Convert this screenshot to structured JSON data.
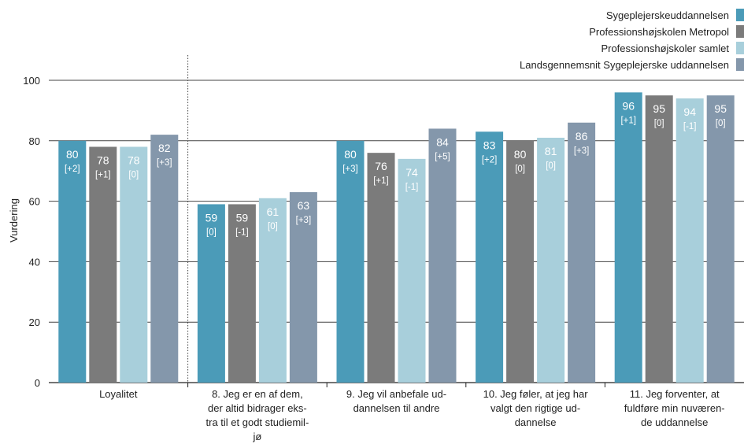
{
  "chart_data": {
    "type": "bar",
    "ylabel": "Vurdering",
    "ylim": [
      0,
      100
    ],
    "yticks": [
      0,
      20,
      40,
      60,
      80,
      100
    ],
    "categories": [
      [
        "Loyalitet"
      ],
      [
        "8. Jeg er en af dem,",
        "der altid bidrager eks-",
        "tra til et godt studiemil-",
        "jø"
      ],
      [
        "9. Jeg vil anbefale ud-",
        "dannelsen til andre"
      ],
      [
        "10. Jeg føler, at jeg har",
        "valgt den rigtige ud-",
        "dannelse"
      ],
      [
        "11. Jeg forventer, at",
        "fuldføre min nuværen-",
        "de uddannelse"
      ]
    ],
    "series": [
      {
        "name": "Sygeplejerskeuddannelsen",
        "color": "#4b9bb8",
        "values": [
          80,
          59,
          80,
          83,
          96
        ],
        "labels": [
          "80",
          "59",
          "80",
          "83",
          "96"
        ],
        "deltas": [
          "[+2]",
          "[0]",
          "[+3]",
          "[+2]",
          "[+1]"
        ]
      },
      {
        "name": "Professionshøjskolen Metropol",
        "color": "#7b7b7b",
        "values": [
          78,
          59,
          76,
          80,
          95
        ],
        "labels": [
          "78",
          "59",
          "76",
          "80",
          "95"
        ],
        "deltas": [
          "[+1]",
          "[-1]",
          "[+1]",
          "[0]",
          "[0]"
        ]
      },
      {
        "name": "Professionshøjskoler samlet",
        "color": "#a8cfdb",
        "values": [
          78,
          61,
          74,
          81,
          94
        ],
        "labels": [
          "78",
          "61",
          "74",
          "81",
          "94"
        ],
        "deltas": [
          "[0]",
          "[0]",
          "[-1]",
          "[0]",
          "[-1]"
        ]
      },
      {
        "name": "Landsgennemsnit Sygeplejerske uddannelsen",
        "color": "#8497ab",
        "values": [
          82,
          63,
          84,
          86,
          95
        ],
        "labels": [
          "82",
          "63",
          "84",
          "86",
          "95"
        ],
        "deltas": [
          "[+3]",
          "[+3]",
          "[+5]",
          "[+3]",
          "[0]"
        ]
      }
    ],
    "legend_position": "top-right",
    "grid": true
  }
}
